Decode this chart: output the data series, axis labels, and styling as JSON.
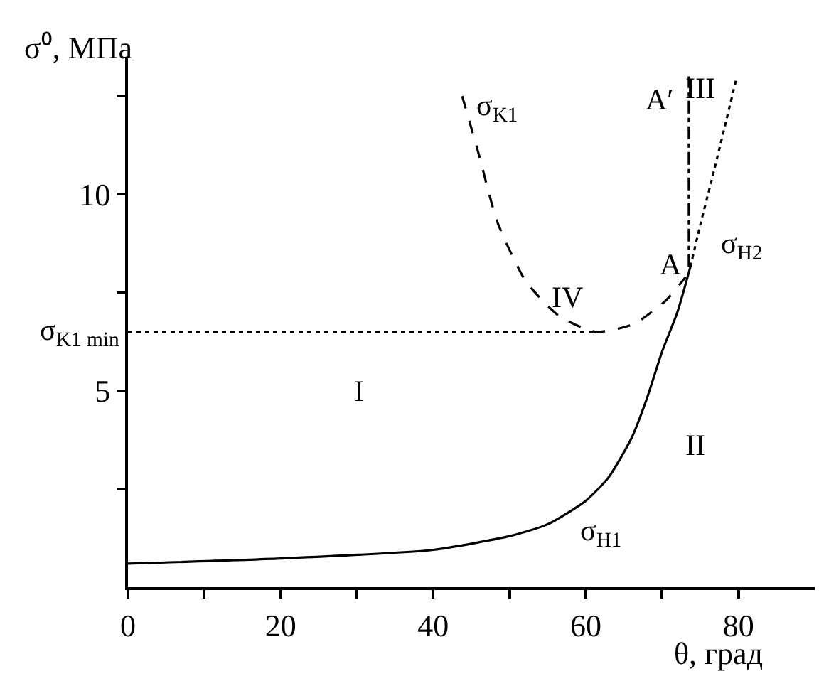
{
  "chart_data": {
    "type": "line",
    "xlabel": "θ, град",
    "ylabel": "σ⁰, МПа",
    "xlim": [
      0,
      90
    ],
    "ylim": [
      0,
      13.5
    ],
    "xticks": [
      0,
      {
        "value": 10,
        "label": null
      },
      20,
      {
        "value": 30,
        "label": null
      },
      40,
      {
        "value": 50,
        "label": null
      },
      60,
      {
        "value": 70,
        "label": null
      },
      80
    ],
    "yticks": [
      {
        "value": 2.5,
        "label": null
      },
      5,
      {
        "value": 7.5,
        "label": null
      },
      10,
      {
        "value": 12.5,
        "label": null
      }
    ],
    "legend": false,
    "series": [
      {
        "x": [
          0,
          20,
          40,
          50,
          55,
          60,
          63,
          66,
          68,
          70,
          72,
          73.7
        ],
        "values": [
          0.6,
          0.73,
          0.95,
          1.3,
          1.6,
          2.2,
          2.8,
          3.8,
          4.8,
          6.0,
          7.0,
          8.15
        ],
        "color": "#000000",
        "line_style": "solid",
        "name": "σ$_{H1}$"
      },
      {
        "x": [
          43.8,
          46,
          48.4,
          52.1,
          56.5,
          61.3,
          66.3,
          70.5,
          73.1
        ],
        "values": [
          12.5,
          11,
          9.3,
          7.8,
          6.9,
          6.5,
          6.7,
          7.3,
          7.9
        ],
        "color": "#000000",
        "line_style": "dashed",
        "name": "σ$_{K1}$"
      },
      {
        "x": [
          73.7,
          75.1,
          76.8,
          79.8
        ],
        "values": [
          8.15,
          9.3,
          10.6,
          13.0
        ],
        "color": "#000000",
        "line_style": "dotted",
        "name": "σ$_{H2}$"
      },
      {
        "x": [
          73.5,
          73.5
        ],
        "values": [
          8.15,
          13.0
        ],
        "color": "#000000",
        "line_style": "dashdot"
      },
      {
        "x": [
          0,
          61.3
        ],
        "values": [
          6.5,
          6.5
        ],
        "color": "#000000",
        "line_style": "dotted"
      }
    ],
    "annotations": [
      {
        "text": "σ$_{K1 min}$",
        "x": 0,
        "y": 6.5
      },
      "A",
      "A′",
      "I",
      "II",
      "III",
      "IV"
    ]
  }
}
